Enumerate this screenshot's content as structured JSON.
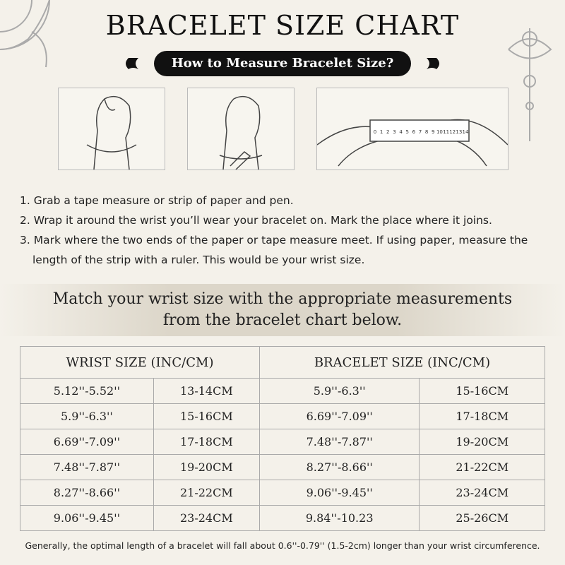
{
  "title": "BRACELET SIZE CHART",
  "subtitle": "How to Measure Bracelet Size?",
  "ruler_labels": [
    0,
    1,
    2,
    3,
    4,
    5,
    6,
    7,
    8,
    9,
    10,
    11,
    12,
    13,
    14
  ],
  "steps": [
    "1. Grab a tape measure or strip of paper and pen.",
    "2. Wrap it around the wrist you’ll wear your bracelet on. Mark the place where it joins.",
    "3. Mark where the two ends of the paper or tape measure meet. If using paper, measure the length of the strip with a ruler. This would be your wrist size."
  ],
  "banner": [
    "Match your wrist size with the appropriate measurements",
    "from the bracelet chart below."
  ],
  "table": {
    "headers": [
      "WRIST SIZE (INC/CM)",
      "BRACELET SIZE    (INC/CM)"
    ],
    "rows": [
      [
        "5.12''-5.52''",
        "13-14CM",
        "5.9''-6.3''",
        "15-16CM"
      ],
      [
        "5.9''-6.3''",
        "15-16CM",
        "6.69''-7.09''",
        "17-18CM"
      ],
      [
        "6.69''-7.09''",
        "17-18CM",
        "7.48''-7.87''",
        "19-20CM"
      ],
      [
        "7.48''-7.87''",
        "19-20CM",
        "8.27''-8.66''",
        "21-22CM"
      ],
      [
        "8.27''-8.66''",
        "21-22CM",
        "9.06''-9.45''",
        "23-24CM"
      ],
      [
        "9.06''-9.45''",
        "23-24CM",
        "9.84''-10.23",
        "25-26CM"
      ]
    ]
  },
  "footnote": "Generally, the optimal length of a bracelet will fall about 0.6''-0.79'' (1.5-2cm) longer than your wrist circumference."
}
